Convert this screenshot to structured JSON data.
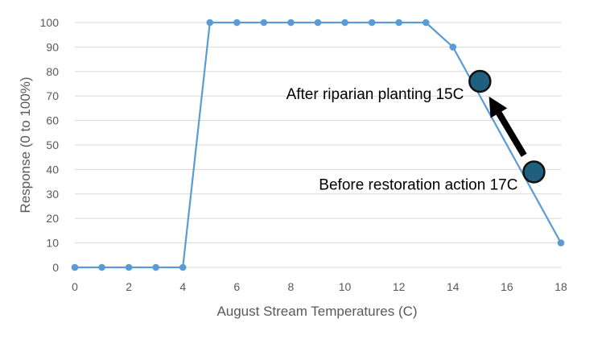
{
  "chart_data": {
    "type": "line",
    "xlabel": "August Stream Temperatures (C)",
    "ylabel": "Response (0 to 100%)",
    "xlim": [
      0,
      18
    ],
    "ylim": [
      0,
      100
    ],
    "x_ticks": [
      0,
      2,
      4,
      6,
      8,
      10,
      12,
      14,
      16,
      18
    ],
    "y_ticks": [
      0,
      10,
      20,
      30,
      40,
      50,
      60,
      70,
      80,
      90,
      100
    ],
    "grid": "horizontal",
    "series": [
      {
        "x": [
          0,
          1,
          2,
          3,
          4,
          5,
          6,
          7,
          8,
          9,
          10,
          11,
          12,
          13,
          14,
          18
        ],
        "y": [
          0,
          0,
          0,
          0,
          0,
          100,
          100,
          100,
          100,
          100,
          100,
          100,
          100,
          100,
          90,
          10
        ],
        "color": "#5b9bd5"
      }
    ],
    "highlight_points": [
      {
        "x": 15,
        "y": 76,
        "label": "After riparian planting 15C",
        "color": "#1f5f80"
      },
      {
        "x": 17,
        "y": 39,
        "label": "Before restoration action 17C",
        "color": "#1f5f80"
      }
    ],
    "arrow": {
      "from_point": 1,
      "to_point": 0,
      "color": "#000000"
    }
  }
}
